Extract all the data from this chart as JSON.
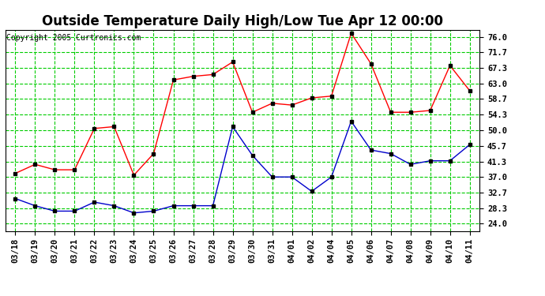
{
  "title": "Outside Temperature Daily High/Low Tue Apr 12 00:00",
  "copyright": "Copyright 2005 Curtronics.com",
  "x_labels": [
    "03/18",
    "03/19",
    "03/20",
    "03/21",
    "03/22",
    "03/23",
    "03/24",
    "03/25",
    "03/26",
    "03/27",
    "03/28",
    "03/29",
    "03/30",
    "03/31",
    "04/01",
    "04/02",
    "04/04",
    "04/05",
    "04/06",
    "04/07",
    "04/08",
    "04/09",
    "04/10",
    "04/11"
  ],
  "high_values": [
    38.0,
    40.5,
    39.0,
    39.0,
    50.5,
    51.0,
    37.5,
    43.5,
    64.0,
    65.0,
    65.5,
    69.0,
    55.0,
    57.5,
    57.0,
    59.0,
    59.5,
    77.0,
    68.5,
    55.0,
    55.0,
    55.5,
    68.0,
    61.0
  ],
  "low_values": [
    31.0,
    29.0,
    27.5,
    27.5,
    30.0,
    29.0,
    27.0,
    27.5,
    29.0,
    29.0,
    29.0,
    51.0,
    43.0,
    37.0,
    37.0,
    33.0,
    37.0,
    52.5,
    44.5,
    43.5,
    40.5,
    41.5,
    41.5,
    46.0
  ],
  "high_color": "#ff0000",
  "low_color": "#0000cc",
  "grid_color": "#00cc00",
  "background_color": "#ffffff",
  "title_fontsize": 12,
  "yticks": [
    24.0,
    28.3,
    32.7,
    37.0,
    41.3,
    45.7,
    50.0,
    54.3,
    58.7,
    63.0,
    67.3,
    71.7,
    76.0
  ],
  "ylim": [
    22.0,
    78.0
  ],
  "marker_color": "#000000",
  "marker_size": 3.0,
  "line_width": 1.0,
  "tick_fontsize": 7.5,
  "copyright_fontsize": 7
}
